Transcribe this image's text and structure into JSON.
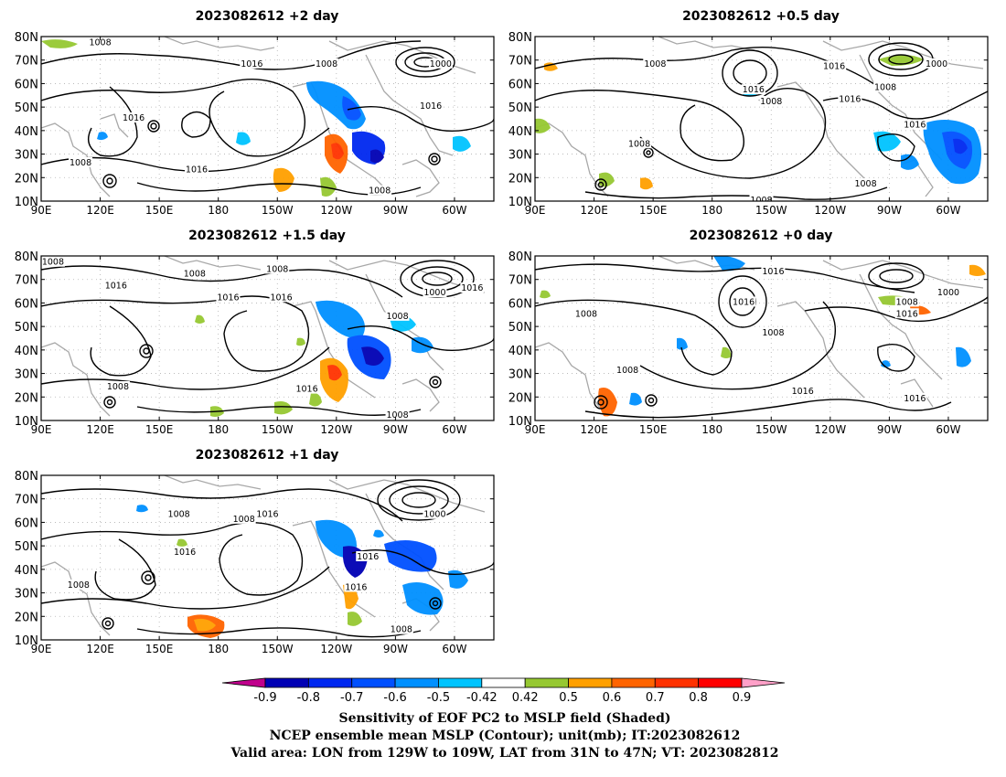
{
  "panels": [
    {
      "id": "p2",
      "title": "2023082612 +2 day"
    },
    {
      "id": "p05",
      "title": "2023082612 +0.5 day"
    },
    {
      "id": "p15",
      "title": "2023082612 +1.5 day"
    },
    {
      "id": "p0",
      "title": "2023082612 +0 day"
    },
    {
      "id": "p1",
      "title": "2023082612 +1 day"
    }
  ],
  "axes": {
    "lat_labels": [
      "80N",
      "70N",
      "60N",
      "50N",
      "40N",
      "30N",
      "20N",
      "10N"
    ],
    "lon_labels": [
      "90E",
      "120E",
      "150E",
      "180",
      "150W",
      "120W",
      "90W",
      "60W"
    ],
    "lon_values": [
      90,
      120,
      150,
      180,
      210,
      240,
      270,
      300
    ],
    "lon_range": [
      90,
      320
    ],
    "lat_top": 80,
    "lat_bottoms": {
      "p2": 10,
      "p05": 10,
      "p15": 10,
      "p0": 10,
      "p1": 10
    }
  },
  "contour_labels": {
    "p2": [
      {
        "text": "1008",
        "lon": 120,
        "lat": 77
      },
      {
        "text": "1016",
        "lon": 197,
        "lat": 68
      },
      {
        "text": "1008",
        "lon": 235,
        "lat": 68
      },
      {
        "text": "1000",
        "lon": 293,
        "lat": 68
      },
      {
        "text": "1016",
        "lon": 137,
        "lat": 45
      },
      {
        "text": "1016",
        "lon": 288,
        "lat": 50
      },
      {
        "text": "1008",
        "lon": 110,
        "lat": 26
      },
      {
        "text": "1016",
        "lon": 169,
        "lat": 23
      },
      {
        "text": "1008",
        "lon": 262,
        "lat": 14
      }
    ],
    "p05": [
      {
        "text": "1008",
        "lon": 151,
        "lat": 68
      },
      {
        "text": "1016",
        "lon": 242,
        "lat": 67
      },
      {
        "text": "1000",
        "lon": 294,
        "lat": 68
      },
      {
        "text": "1016",
        "lon": 201,
        "lat": 57
      },
      {
        "text": "1008",
        "lon": 210,
        "lat": 52
      },
      {
        "text": "1008",
        "lon": 268,
        "lat": 58
      },
      {
        "text": "1016",
        "lon": 250,
        "lat": 53
      },
      {
        "text": "1016",
        "lon": 283,
        "lat": 42
      },
      {
        "text": "1008",
        "lon": 143,
        "lat": 34
      },
      {
        "text": "1008",
        "lon": 258,
        "lat": 17
      },
      {
        "text": "1008",
        "lon": 205,
        "lat": 10
      }
    ],
    "p15": [
      {
        "text": "1008",
        "lon": 96,
        "lat": 77
      },
      {
        "text": "1008",
        "lon": 168,
        "lat": 72
      },
      {
        "text": "1008",
        "lon": 210,
        "lat": 74
      },
      {
        "text": "1016",
        "lon": 128,
        "lat": 67
      },
      {
        "text": "1016",
        "lon": 185,
        "lat": 62
      },
      {
        "text": "1016",
        "lon": 212,
        "lat": 62
      },
      {
        "text": "1000",
        "lon": 290,
        "lat": 64
      },
      {
        "text": "1016",
        "lon": 309,
        "lat": 66
      },
      {
        "text": "1008",
        "lon": 271,
        "lat": 54
      },
      {
        "text": "1008",
        "lon": 129,
        "lat": 24
      },
      {
        "text": "1016",
        "lon": 225,
        "lat": 23
      },
      {
        "text": "1008",
        "lon": 271,
        "lat": 12
      }
    ],
    "p0": [
      {
        "text": "1016",
        "lon": 211,
        "lat": 73
      },
      {
        "text": "1016",
        "lon": 196,
        "lat": 60
      },
      {
        "text": "1008",
        "lon": 279,
        "lat": 60
      },
      {
        "text": "1000",
        "lon": 300,
        "lat": 64
      },
      {
        "text": "1008",
        "lon": 116,
        "lat": 55
      },
      {
        "text": "1008",
        "lon": 211,
        "lat": 47
      },
      {
        "text": "1016",
        "lon": 279,
        "lat": 55
      },
      {
        "text": "1008",
        "lon": 137,
        "lat": 31
      },
      {
        "text": "1016",
        "lon": 226,
        "lat": 22
      },
      {
        "text": "1016",
        "lon": 283,
        "lat": 19
      }
    ],
    "p1": [
      {
        "text": "1008",
        "lon": 160,
        "lat": 63
      },
      {
        "text": "1008",
        "lon": 193,
        "lat": 61
      },
      {
        "text": "1016",
        "lon": 205,
        "lat": 63
      },
      {
        "text": "1000",
        "lon": 290,
        "lat": 63
      },
      {
        "text": "1016",
        "lon": 163,
        "lat": 47
      },
      {
        "text": "1016",
        "lon": 256,
        "lat": 45
      },
      {
        "text": "1008",
        "lon": 109,
        "lat": 33
      },
      {
        "text": "1016",
        "lon": 250,
        "lat": 32
      },
      {
        "text": "1008",
        "lon": 273,
        "lat": 14
      }
    ]
  },
  "colorbar": {
    "labels": [
      "-0.9",
      "-0.8",
      "-0.7",
      "-0.6",
      "-0.5",
      "-0.42",
      "0.42",
      "0.5",
      "0.6",
      "0.7",
      "0.8",
      "0.9"
    ],
    "colors": [
      "#c0008c",
      "#0000b4",
      "#0028f0",
      "#0050ff",
      "#0090ff",
      "#00c4ff",
      "#ffffff",
      "#96c832",
      "#ffa000",
      "#ff6400",
      "#ff3200",
      "#ff0000",
      "#ffa0c8"
    ]
  },
  "footer": {
    "line1": "Sensitivity of EOF PC2 to MSLP field (Shaded)",
    "line2": "NCEP ensemble mean MSLP (Contour); unit(mb); IT:2023082612",
    "line3": "Valid area: LON from 129W to 109W, LAT from 31N to 47N; VT: 2023082812"
  }
}
